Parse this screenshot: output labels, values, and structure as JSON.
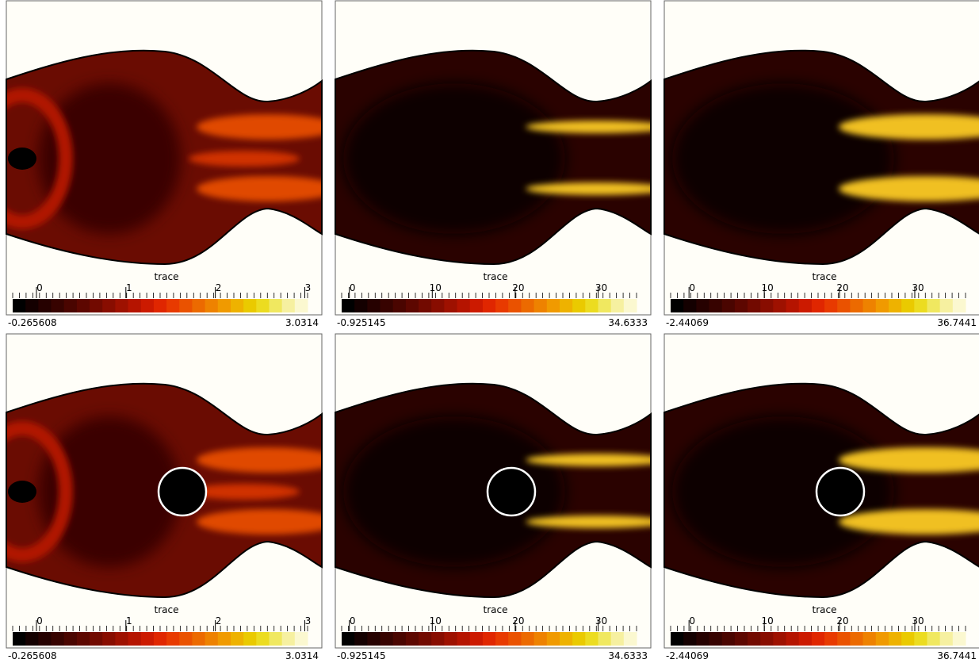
{
  "panels": [
    {
      "colorbar": {
        "title": "trace",
        "range": [
          -0.265608,
          3.0314
        ],
        "ticks": [
          0,
          1,
          2,
          3
        ]
      }
    },
    {
      "colorbar": {
        "title": "trace",
        "range": [
          -0.925145,
          34.6333
        ],
        "ticks": [
          0,
          10,
          20,
          30
        ]
      }
    },
    {
      "colorbar": {
        "title": "trace",
        "range": [
          -2.44069,
          36.7441
        ],
        "ticks": [
          0,
          10,
          20,
          30
        ]
      }
    },
    {
      "colorbar": {
        "title": "trace",
        "range": [
          -0.265608,
          3.0314
        ],
        "ticks": [
          0,
          1,
          2,
          3
        ]
      }
    },
    {
      "colorbar": {
        "title": "trace",
        "range": [
          -0.925145,
          34.6333
        ],
        "ticks": [
          0,
          10,
          20,
          30
        ]
      }
    },
    {
      "colorbar": {
        "title": "trace",
        "range": [
          -2.44069,
          36.7441
        ],
        "ticks": [
          0,
          10,
          20,
          30
        ]
      }
    }
  ]
}
